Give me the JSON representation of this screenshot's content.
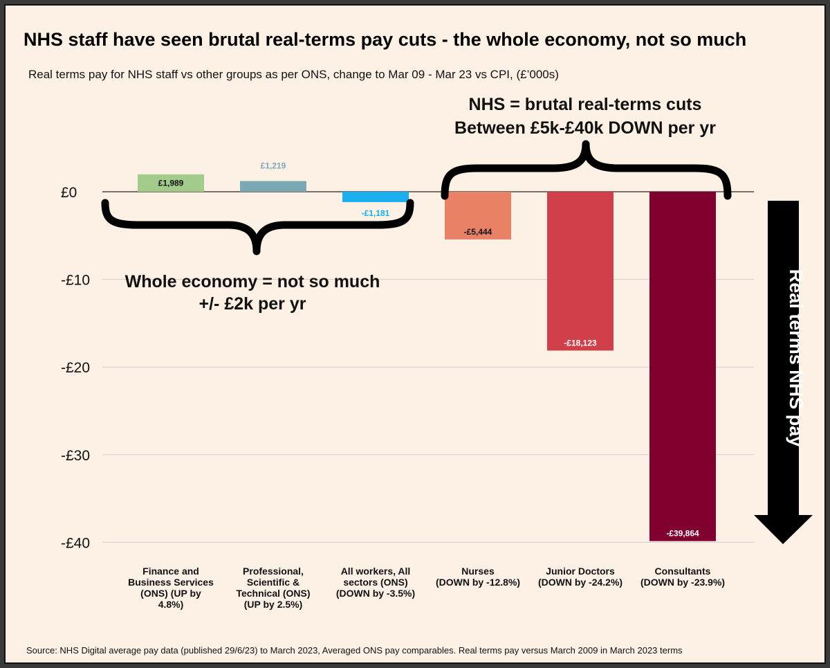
{
  "chart_data": {
    "type": "bar",
    "title": "NHS staff have seen brutal real-terms pay cuts - the whole economy, not so much",
    "subtitle": "Real terms pay for NHS staff vs other groups as per ONS, change to Mar 09 - Mar 23 vs CPI, (£’000s)",
    "categories": [
      [
        "Finance and",
        "Business Services",
        "(ONS) (UP by",
        "4.8%)"
      ],
      [
        "Professional,",
        "Scientific &",
        "Technical (ONS)",
        "(UP by 2.5%)"
      ],
      [
        "All workers, All",
        "sectors (ONS)",
        "(DOWN by -3.5%)"
      ],
      [
        "Nurses",
        "(DOWN by -12.8%)"
      ],
      [
        "Junior Doctors",
        "(DOWN by -24.2%)"
      ],
      [
        "Consultants",
        "(DOWN by -23.9%)"
      ]
    ],
    "values": [
      1.989,
      1.219,
      -1.181,
      -5.444,
      -18.123,
      -39.864
    ],
    "data_labels": [
      "£1,989",
      "£1,219",
      "-£1,181",
      "-£5,444",
      "-£18,123",
      "-£39,864"
    ],
    "colors": [
      "#a3cb8b",
      "#7aa9b4",
      "#1ab0ef",
      "#e98166",
      "#d0404a",
      "#800030"
    ],
    "label_colors": [
      "#111111",
      "#7aa9b4",
      "#1ab0ef",
      "#111111",
      "#ffffff",
      "#ffffff"
    ],
    "y_ticks": [
      0,
      -10,
      -20,
      -30,
      -40
    ],
    "y_tick_labels": [
      "£0",
      "-£10",
      "-£20",
      "-£30",
      "-£40"
    ],
    "ylim": [
      -40,
      0
    ],
    "grid": true,
    "legend": "none"
  },
  "annotations": {
    "nhs_brace_line1": "NHS = brutal real-terms cuts",
    "nhs_brace_line2": "Between £5k-£40k DOWN per yr",
    "economy_brace_line1": "Whole economy = not so much",
    "economy_brace_line2": "+/- £2k per yr",
    "arrow_text": "Real terms NHS pay"
  },
  "source": "Source: NHS Digital average pay data (published 29/6/23) to March 2023, Averaged ONS pay comparables. Real terms pay versus March 2009 in March 2023 terms"
}
